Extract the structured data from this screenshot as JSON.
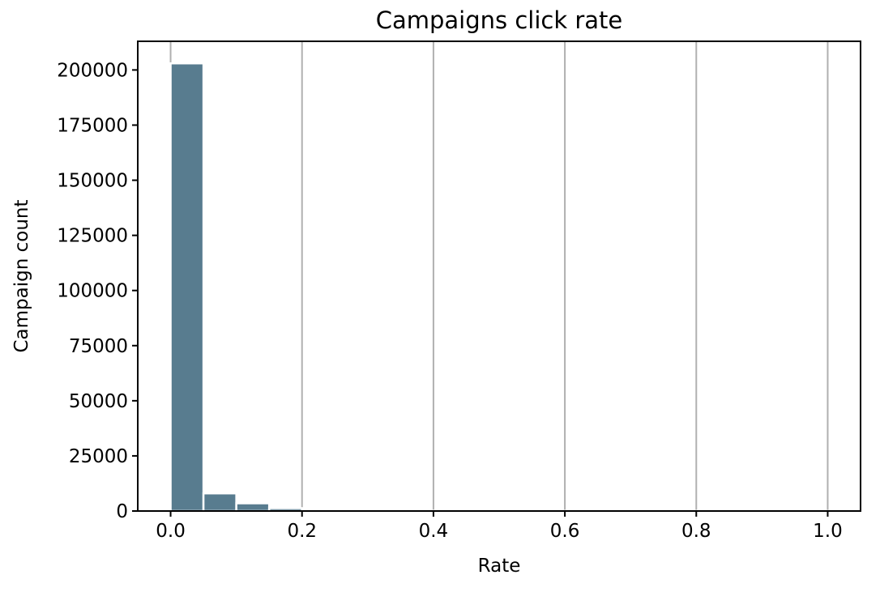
{
  "chart_data": {
    "type": "bar",
    "title": "Campaigns click rate",
    "xlabel": "Rate",
    "ylabel": "Campaign count",
    "xlim": [
      -0.05,
      1.05
    ],
    "ylim": [
      0,
      213000
    ],
    "x_ticks": [
      0.0,
      0.2,
      0.4,
      0.6,
      0.8,
      1.0
    ],
    "x_tick_labels": [
      "0.0",
      "0.2",
      "0.4",
      "0.6",
      "0.8",
      "1.0"
    ],
    "y_ticks": [
      0,
      25000,
      50000,
      75000,
      100000,
      125000,
      150000,
      175000,
      200000
    ],
    "y_tick_labels": [
      "0",
      "25000",
      "50000",
      "75000",
      "100000",
      "125000",
      "150000",
      "175000",
      "200000"
    ],
    "grid": "vertical",
    "bar_color": "#587c8f",
    "bin_width": 0.05,
    "bins": [
      {
        "start": 0.0,
        "end": 0.05,
        "count": 203000
      },
      {
        "start": 0.05,
        "end": 0.1,
        "count": 8000
      },
      {
        "start": 0.1,
        "end": 0.15,
        "count": 3500
      },
      {
        "start": 0.15,
        "end": 0.2,
        "count": 1300
      },
      {
        "start": 0.2,
        "end": 0.25,
        "count": 700
      },
      {
        "start": 0.25,
        "end": 0.3,
        "count": 350
      },
      {
        "start": 0.3,
        "end": 0.35,
        "count": 200
      },
      {
        "start": 0.35,
        "end": 0.4,
        "count": 120
      },
      {
        "start": 0.4,
        "end": 0.45,
        "count": 80
      },
      {
        "start": 0.45,
        "end": 0.5,
        "count": 60
      },
      {
        "start": 0.5,
        "end": 0.55,
        "count": 40
      },
      {
        "start": 0.55,
        "end": 0.6,
        "count": 30
      },
      {
        "start": 0.6,
        "end": 0.65,
        "count": 25
      },
      {
        "start": 0.65,
        "end": 0.7,
        "count": 20
      },
      {
        "start": 0.7,
        "end": 0.75,
        "count": 15
      },
      {
        "start": 0.75,
        "end": 0.8,
        "count": 12
      },
      {
        "start": 0.8,
        "end": 0.85,
        "count": 10
      },
      {
        "start": 0.85,
        "end": 0.9,
        "count": 8
      },
      {
        "start": 0.9,
        "end": 0.95,
        "count": 6
      },
      {
        "start": 0.95,
        "end": 1.0,
        "count": 20
      }
    ]
  }
}
